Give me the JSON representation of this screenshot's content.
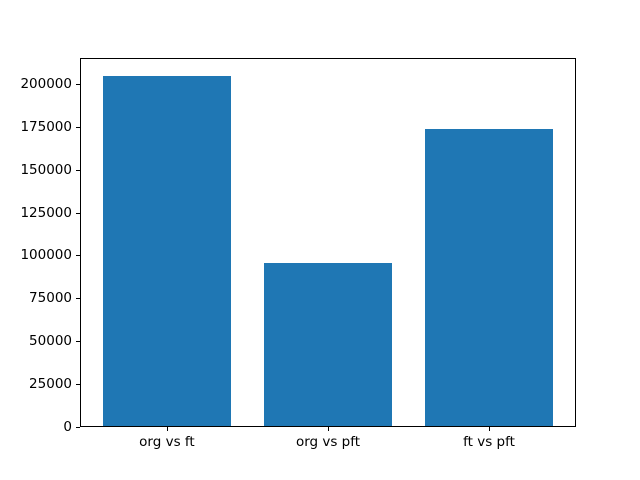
{
  "chart_data": {
    "type": "bar",
    "categories": [
      "org vs ft",
      "org vs pft",
      "ft vs pft"
    ],
    "values": [
      204800,
      95400,
      173500
    ],
    "title": "",
    "xlabel": "",
    "ylabel": "",
    "ylim": [
      0,
      215040
    ],
    "yticks": [
      0,
      25000,
      50000,
      75000,
      100000,
      125000,
      150000,
      175000,
      200000
    ],
    "bar_color": "#1f77b4",
    "background_color": "#ffffff",
    "spine_color": "#000000",
    "text_color": "#000000",
    "grid": false,
    "legend": null
  }
}
